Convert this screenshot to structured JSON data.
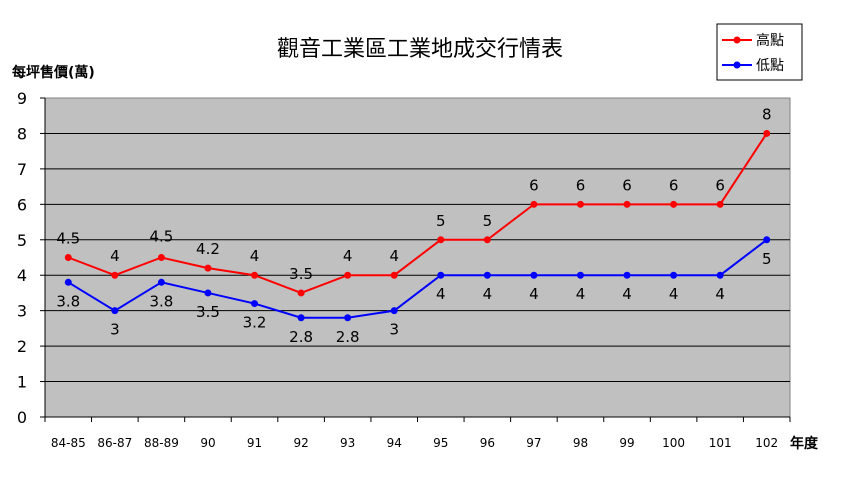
{
  "chart_data": {
    "type": "line",
    "title": "觀音工業區工業地成交行情表",
    "ylabel": "每坪售價(萬)",
    "xlabel": "年度",
    "categories": [
      "84-85",
      "86-87",
      "88-89",
      "90",
      "91",
      "92",
      "93",
      "94",
      "95",
      "96",
      "97",
      "98",
      "99",
      "100",
      "101",
      "102"
    ],
    "ylim": [
      0,
      9
    ],
    "yticks": [
      "0",
      "1",
      "2",
      "3",
      "4",
      "5",
      "6",
      "7",
      "8",
      "9"
    ],
    "grid": "horizontal",
    "legend_position": "top-right",
    "plot_background": "#c0c0c0",
    "series": [
      {
        "name": "高點",
        "color": "#ff0000",
        "values": [
          4.5,
          4,
          4.5,
          4.2,
          4,
          3.5,
          4,
          4,
          5,
          5,
          6,
          6,
          6,
          6,
          6,
          8
        ],
        "labels": [
          "4.5",
          "4",
          "4.5",
          "4.2",
          "4",
          "3.5",
          "4",
          "4",
          "5",
          "5",
          "6",
          "6",
          "6",
          "6",
          "6",
          "8"
        ]
      },
      {
        "name": "低點",
        "color": "#0000ff",
        "values": [
          3.8,
          3,
          3.8,
          3.5,
          3.2,
          2.8,
          2.8,
          3,
          4,
          4,
          4,
          4,
          4,
          4,
          4,
          5
        ],
        "labels": [
          "3.8",
          "3",
          "3.8",
          "3.5",
          "3.2",
          "2.8",
          "2.8",
          "3",
          "4",
          "4",
          "4",
          "4",
          "4",
          "4",
          "4",
          "5"
        ]
      }
    ]
  }
}
